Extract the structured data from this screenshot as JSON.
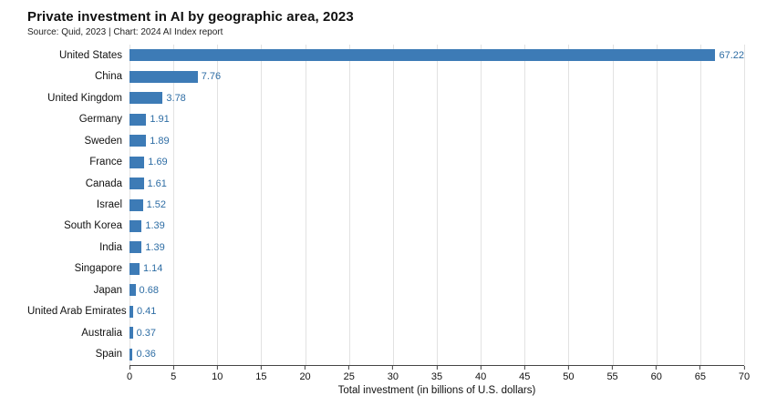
{
  "header": {
    "title": "Private investment in AI by geographic area, 2023",
    "source": "Source: Quid, 2023 | Chart: 2024 AI Index report"
  },
  "chart_data": {
    "type": "bar",
    "orientation": "horizontal",
    "title": "Private investment in AI by geographic area, 2023",
    "subtitle": "Source: Quid, 2023 | Chart: 2024 AI Index report",
    "categories": [
      "United States",
      "China",
      "United Kingdom",
      "Germany",
      "Sweden",
      "France",
      "Canada",
      "Israel",
      "South Korea",
      "India",
      "Singapore",
      "Japan",
      "United Arab Emirates",
      "Australia",
      "Spain"
    ],
    "values": [
      67.22,
      7.76,
      3.78,
      1.91,
      1.89,
      1.69,
      1.61,
      1.52,
      1.39,
      1.39,
      1.14,
      0.68,
      0.41,
      0.37,
      0.36
    ],
    "xlabel": "Total investment (in billions of U.S. dollars)",
    "ylabel": "",
    "xlim": [
      0,
      70
    ],
    "xticks": [
      0,
      5,
      10,
      15,
      20,
      25,
      30,
      35,
      40,
      45,
      50,
      55,
      60,
      65,
      70
    ],
    "grid": true,
    "legend": "none",
    "bar_color": "#3d7bb6",
    "value_label_color": "#2e6da4",
    "gridline_color": "#e2e2e2"
  }
}
